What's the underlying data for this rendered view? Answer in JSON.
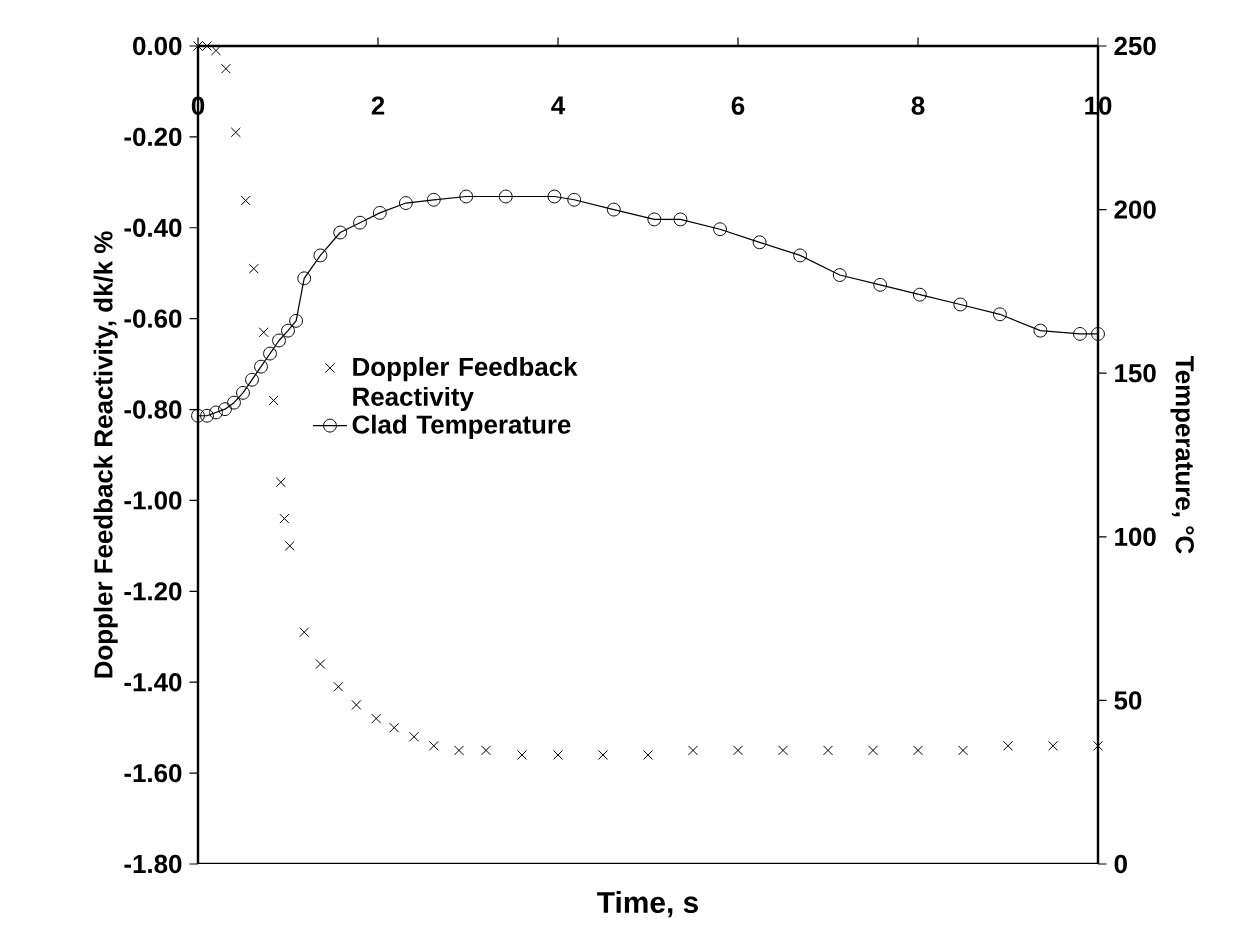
{
  "chart_data": {
    "type": "line",
    "xlabel": "Time, s",
    "ylabel": "Doppler Feedback Reactivity, dk/k %",
    "y2label": "Temperature, °C",
    "xlim": [
      0,
      10
    ],
    "xticks": [
      0,
      2,
      4,
      6,
      8,
      10
    ],
    "ylim": [
      -1.8,
      0
    ],
    "yticks": [
      {
        "value": 0,
        "label": "0.00"
      },
      {
        "value": -0.2,
        "label": "-0.20"
      },
      {
        "value": -0.4,
        "label": "-0.40"
      },
      {
        "value": -0.6,
        "label": "-0.60"
      },
      {
        "value": -0.8,
        "label": "-0.80"
      },
      {
        "value": -1.0,
        "label": "-1.00"
      },
      {
        "value": -1.2,
        "label": "-1.20"
      },
      {
        "value": -1.4,
        "label": "-1.40"
      },
      {
        "value": -1.6,
        "label": "-1.60"
      },
      {
        "value": -1.8,
        "label": "-1.80"
      }
    ],
    "y2lim": [
      0,
      250
    ],
    "y2ticks": [
      0,
      50,
      100,
      150,
      200,
      250
    ],
    "legend": "left",
    "series": [
      {
        "name": "Doppler Feedback Reactivity",
        "type": "scatter",
        "marker": "cross",
        "color": "#000000",
        "x": [
          0,
          0.1,
          0.2,
          0.31,
          0.42,
          0.53,
          0.62,
          0.73,
          0.84,
          0.92,
          0.96,
          1.02,
          1.18,
          1.36,
          1.56,
          1.76,
          1.98,
          2.18,
          2.4,
          2.62,
          2.9,
          3.2,
          3.6,
          4,
          4.5,
          5,
          5.5,
          6,
          6.5,
          7,
          7.5,
          8,
          8.5,
          9,
          9.5,
          10
        ],
        "values": [
          0,
          0,
          -0.01,
          -0.05,
          -0.19,
          -0.34,
          -0.49,
          -0.63,
          -0.78,
          -0.96,
          -1.04,
          -1.1,
          -1.29,
          -1.36,
          -1.41,
          -1.45,
          -1.48,
          -1.5,
          -1.52,
          -1.54,
          -1.55,
          -1.55,
          -1.56,
          -1.56,
          -1.56,
          -1.56,
          -1.55,
          -1.55,
          -1.55,
          -1.55,
          -1.55,
          -1.55,
          -1.55,
          -1.54,
          -1.54,
          -1.54
        ]
      },
      {
        "name": "Clad Temperature",
        "axis": "y2",
        "marker": "circle",
        "color": "#000000",
        "x": [
          0,
          0.1,
          0.2,
          0.3,
          0.4,
          0.5,
          0.6,
          0.7,
          0.8,
          0.9,
          1.0,
          1.09,
          1.18,
          1.36,
          1.58,
          1.8,
          2.02,
          2.31,
          2.62,
          2.98,
          3.42,
          3.96,
          4.18,
          4.62,
          5.07,
          5.36,
          5.8,
          6.24,
          6.69,
          7.13,
          7.58,
          8.02,
          8.47,
          8.91,
          9.36,
          9.8,
          10
        ],
        "values": [
          137,
          137,
          138,
          139,
          141,
          144,
          148,
          152,
          156,
          160,
          163,
          166,
          179,
          186,
          193,
          196,
          199,
          202,
          203,
          204,
          204,
          204,
          203,
          200,
          197,
          197,
          194,
          190,
          186,
          180,
          177,
          174,
          171,
          168,
          163,
          162,
          162
        ]
      }
    ]
  }
}
